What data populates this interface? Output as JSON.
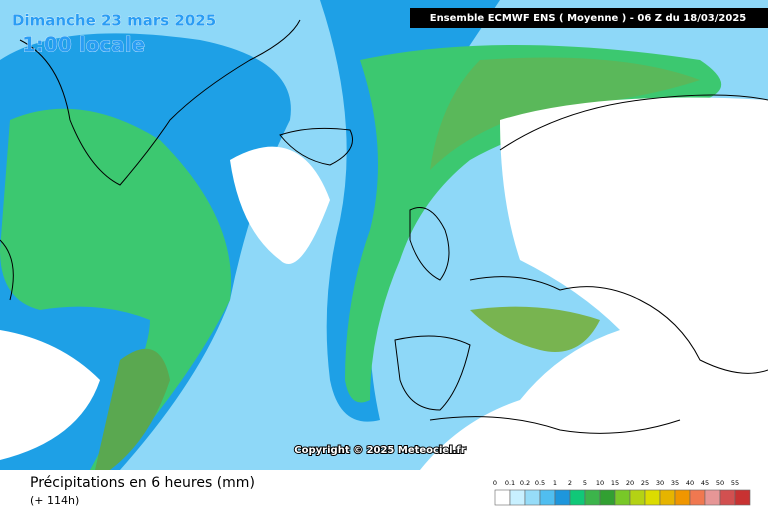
{
  "header": {
    "date": "Dimanche 23 mars 2025",
    "time": "1:00 locale",
    "run": "Ensemble ECMWF ENS  ( Moyenne )  -  06 Z du 18/03/2025"
  },
  "copyright": "Copyright © 2025 Meteociel.fr",
  "footer": {
    "title": "Précipitations en 6 heures (mm)",
    "subtitle": "(+ 114h)"
  },
  "legend": {
    "labels": [
      "0",
      "0.1",
      "0.2",
      "0.5",
      "1",
      "2",
      "5",
      "10",
      "15",
      "20",
      "25",
      "30",
      "35",
      "40",
      "45",
      "50",
      "55"
    ],
    "colors": [
      "#ffffff",
      "#c8f0ff",
      "#96dcf8",
      "#50bef0",
      "#1e96dc",
      "#10c878",
      "#3cb44b",
      "#32a032",
      "#78c828",
      "#b4d214",
      "#dcdc00",
      "#e6b400",
      "#f09600",
      "#f07850",
      "#e69696",
      "#d25050",
      "#c83232"
    ]
  }
}
